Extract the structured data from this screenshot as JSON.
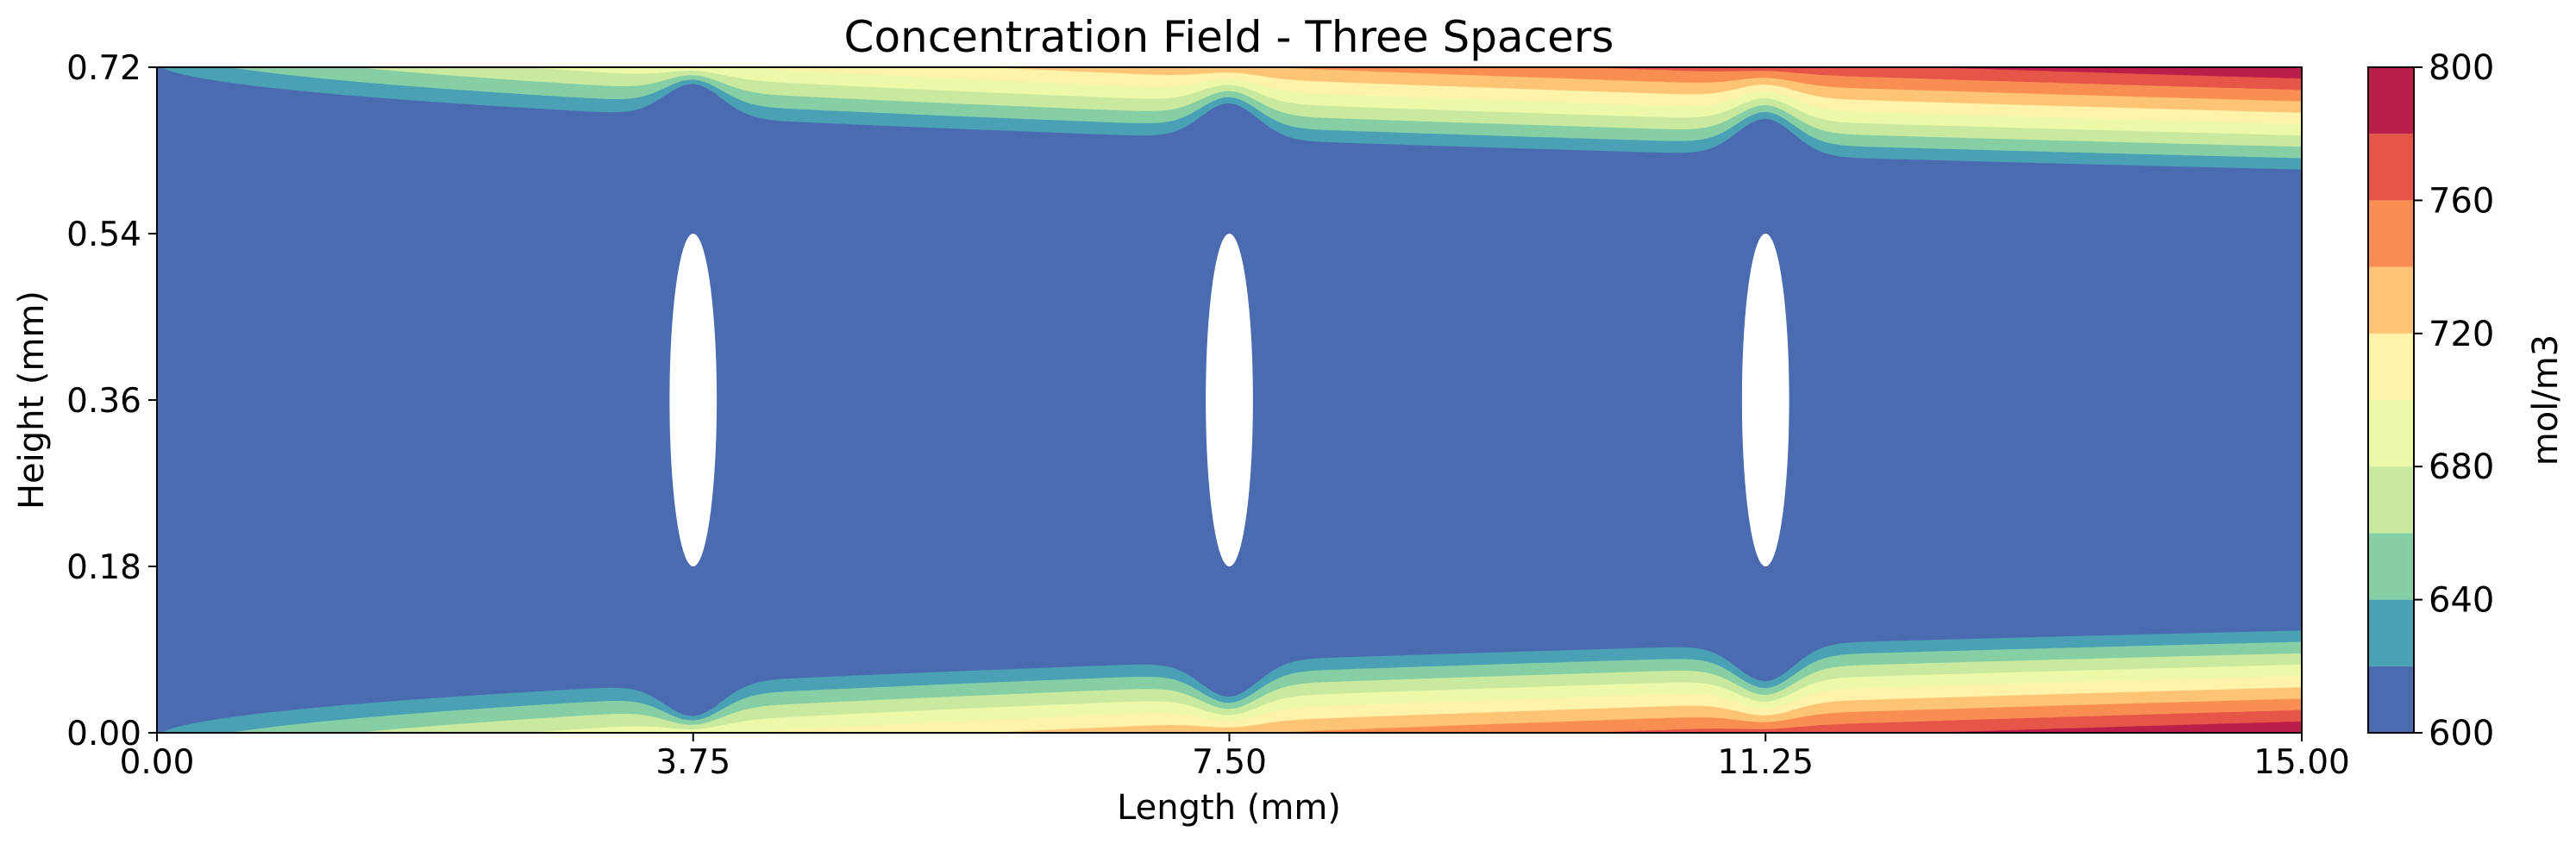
{
  "chart_data": {
    "type": "heatmap",
    "title": "Concentration Field - Three Spacers",
    "xlabel": "Length (mm)",
    "ylabel": "Height (mm)",
    "xlim": [
      0,
      15
    ],
    "ylim": [
      0,
      0.72
    ],
    "xticks": [
      "0.00",
      "3.75",
      "7.50",
      "11.25",
      "15.00"
    ],
    "yticks": [
      "0.00",
      "0.18",
      "0.36",
      "0.54",
      "0.72"
    ],
    "xtick_values": [
      0,
      3.75,
      7.5,
      11.25,
      15
    ],
    "ytick_values": [
      0,
      0.18,
      0.36,
      0.54,
      0.72
    ],
    "colorbar": {
      "label": "mol/m3",
      "range": [
        600,
        800
      ],
      "ticks": [
        "600",
        "640",
        "680",
        "720",
        "760",
        "800"
      ],
      "tick_values": [
        600,
        640,
        680,
        720,
        760,
        800
      ],
      "levels": [
        600,
        620,
        640,
        660,
        680,
        700,
        720,
        740,
        760,
        780,
        800
      ],
      "colors": [
        "#4a6bb0",
        "#4aa0b4",
        "#86cfa5",
        "#c9e99e",
        "#eef8a9",
        "#fff3aa",
        "#fdc475",
        "#f98e52",
        "#e65648",
        "#bc1e4a"
      ]
    },
    "spacers": [
      {
        "x_center": 3.75,
        "y_center": 0.36,
        "width": 0.33,
        "height": 0.36
      },
      {
        "x_center": 7.5,
        "y_center": 0.36,
        "width": 0.33,
        "height": 0.36
      },
      {
        "x_center": 11.25,
        "y_center": 0.36,
        "width": 0.33,
        "height": 0.36
      }
    ],
    "bulk_concentration": 600,
    "wall_concentration_at_outlet": 800
  }
}
